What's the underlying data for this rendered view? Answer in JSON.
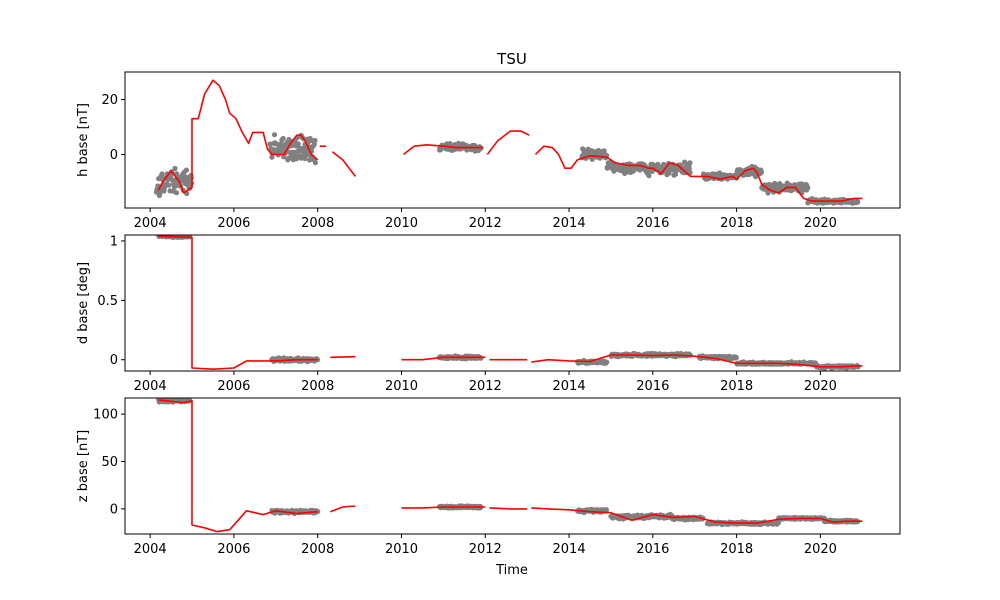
{
  "chart_data": {
    "type": "scatter",
    "title": "TSU",
    "xlabel": "Time",
    "xlim": [
      2003.4,
      2021.9
    ],
    "x_ticks": [
      2004,
      2006,
      2008,
      2010,
      2012,
      2014,
      2016,
      2018,
      2020
    ],
    "colors": {
      "observations": "#808080",
      "baseline": "#ff0000"
    },
    "grid": false,
    "panels": [
      {
        "id": "h",
        "ylabel": "h base [nT]",
        "ylim": [
          -19.5,
          30
        ],
        "y_ticks": [
          0,
          20
        ],
        "series": [
          {
            "kind": "points",
            "clusters": [
              [
                2004.15,
                2005.0,
                -10,
                4.0
              ],
              [
                2006.85,
                2007.95,
                2,
                4.5
              ],
              [
                2010.9,
                2011.9,
                2.5,
                1.2
              ],
              [
                2014.3,
                2014.9,
                0,
                2.0
              ],
              [
                2014.9,
                2016.9,
                -5,
                2.0
              ],
              [
                2017.2,
                2018.0,
                -8,
                1.0
              ],
              [
                2018.0,
                2018.6,
                -6,
                1.5
              ],
              [
                2018.6,
                2019.2,
                -12,
                1.5
              ],
              [
                2019.2,
                2019.7,
                -12,
                1.5
              ],
              [
                2019.7,
                2020.9,
                -17,
                0.8
              ]
            ]
          },
          {
            "kind": "line",
            "segments": [
              [
                [
                  2004.2,
                  -13
                ],
                [
                  2004.3,
                  -10
                ],
                [
                  2004.4,
                  -8
                ],
                [
                  2004.5,
                  -6
                ],
                [
                  2004.6,
                  -8
                ],
                [
                  2004.7,
                  -10
                ],
                [
                  2004.8,
                  -14
                ],
                [
                  2004.9,
                  -13
                ],
                [
                  2005.0,
                  -12
                ],
                [
                  2005.0,
                  13
                ],
                [
                  2005.15,
                  13
                ],
                [
                  2005.3,
                  22
                ],
                [
                  2005.5,
                  27
                ],
                [
                  2005.65,
                  25
                ],
                [
                  2005.8,
                  20
                ],
                [
                  2005.9,
                  15
                ],
                [
                  2006.05,
                  13
                ],
                [
                  2006.2,
                  8
                ],
                [
                  2006.35,
                  4
                ],
                [
                  2006.45,
                  8
                ],
                [
                  2006.7,
                  8
                ],
                [
                  2006.8,
                  2
                ],
                [
                  2006.9,
                  0
                ],
                [
                  2007.0,
                  0
                ],
                [
                  2007.2,
                  0
                ],
                [
                  2007.35,
                  4
                ],
                [
                  2007.5,
                  7
                ],
                [
                  2007.6,
                  7
                ],
                [
                  2007.7,
                  5
                ],
                [
                  2007.85,
                  0
                ],
                [
                  2008.0,
                  -2
                ]
              ],
              [
                [
                  2008.05,
                  3
                ],
                [
                  2008.2,
                  3
                ]
              ],
              [
                [
                  2008.35,
                  1
                ],
                [
                  2008.6,
                  -2
                ],
                [
                  2008.9,
                  -8
                ]
              ],
              [
                [
                  2010.05,
                  0
                ],
                [
                  2010.3,
                  3
                ],
                [
                  2010.6,
                  3.5
                ],
                [
                  2011.0,
                  3
                ],
                [
                  2011.3,
                  2.5
                ],
                [
                  2011.6,
                  2.5
                ],
                [
                  2011.95,
                  2.5
                ]
              ],
              [
                [
                  2012.05,
                  0
                ],
                [
                  2012.3,
                  5
                ],
                [
                  2012.6,
                  8.5
                ],
                [
                  2012.85,
                  8.5
                ],
                [
                  2013.05,
                  7
                ]
              ],
              [
                [
                  2013.2,
                  0
                ],
                [
                  2013.4,
                  3
                ],
                [
                  2013.6,
                  2.5
                ],
                [
                  2013.75,
                  0
                ],
                [
                  2013.9,
                  -5
                ],
                [
                  2014.05,
                  -5
                ],
                [
                  2014.2,
                  -2
                ],
                [
                  2014.5,
                  -0.5
                ],
                [
                  2014.9,
                  -1
                ],
                [
                  2015.1,
                  -3
                ],
                [
                  2015.4,
                  -4
                ],
                [
                  2015.7,
                  -4
                ],
                [
                  2015.9,
                  -5
                ],
                [
                  2016.0,
                  -5
                ],
                [
                  2016.2,
                  -7
                ],
                [
                  2016.4,
                  -3
                ],
                [
                  2016.6,
                  -4
                ],
                [
                  2016.9,
                  -8
                ],
                [
                  2017.3,
                  -8
                ],
                [
                  2017.6,
                  -9
                ],
                [
                  2017.9,
                  -8
                ],
                [
                  2018.0,
                  -9
                ],
                [
                  2018.2,
                  -6
                ],
                [
                  2018.4,
                  -5
                ],
                [
                  2018.5,
                  -7
                ],
                [
                  2018.6,
                  -11
                ],
                [
                  2018.8,
                  -13
                ],
                [
                  2019.0,
                  -14
                ],
                [
                  2019.2,
                  -12
                ],
                [
                  2019.4,
                  -12
                ],
                [
                  2019.6,
                  -16
                ],
                [
                  2019.8,
                  -17
                ],
                [
                  2020.2,
                  -17
                ],
                [
                  2020.5,
                  -17
                ],
                [
                  2020.8,
                  -16
                ],
                [
                  2021.0,
                  -16
                ]
              ]
            ]
          }
        ]
      },
      {
        "id": "d",
        "ylabel": "d base [deg]",
        "ylim": [
          -0.095,
          1.05
        ],
        "y_ticks": [
          0.0,
          0.5,
          1.0
        ],
        "series": [
          {
            "kind": "points",
            "clusters": [
              [
                2004.2,
                2004.95,
                1.04,
                0.01
              ],
              [
                2006.9,
                2008.0,
                0.0,
                0.015
              ],
              [
                2010.9,
                2011.9,
                0.02,
                0.01
              ],
              [
                2014.2,
                2014.9,
                -0.02,
                0.012
              ],
              [
                2015.0,
                2016.9,
                0.04,
                0.012
              ],
              [
                2017.1,
                2018.0,
                0.02,
                0.01
              ],
              [
                2018.0,
                2019.9,
                -0.03,
                0.01
              ],
              [
                2019.9,
                2020.9,
                -0.06,
                0.01
              ]
            ]
          },
          {
            "kind": "line",
            "segments": [
              [
                [
                  2004.2,
                  1.04
                ],
                [
                  2005.0,
                  1.03
                ],
                [
                  2005.0,
                  -0.07
                ],
                [
                  2005.5,
                  -0.08
                ],
                [
                  2006.0,
                  -0.07
                ],
                [
                  2006.3,
                  -0.01
                ],
                [
                  2007.0,
                  -0.01
                ],
                [
                  2007.5,
                  0.0
                ],
                [
                  2008.0,
                  0.0
                ]
              ],
              [
                [
                  2008.3,
                  0.02
                ],
                [
                  2008.9,
                  0.025
                ]
              ],
              [
                [
                  2010.0,
                  0.0
                ],
                [
                  2010.5,
                  0.0
                ],
                [
                  2011.0,
                  0.02
                ],
                [
                  2011.5,
                  0.02
                ],
                [
                  2012.0,
                  0.02
                ]
              ],
              [
                [
                  2012.1,
                  0.0
                ],
                [
                  2013.0,
                  0.0
                ]
              ],
              [
                [
                  2013.1,
                  -0.02
                ],
                [
                  2013.5,
                  0.0
                ],
                [
                  2014.0,
                  -0.01
                ],
                [
                  2014.5,
                  -0.015
                ],
                [
                  2015.0,
                  0.04
                ],
                [
                  2015.5,
                  0.04
                ],
                [
                  2016.0,
                  0.035
                ],
                [
                  2016.5,
                  0.04
                ],
                [
                  2017.0,
                  0.03
                ],
                [
                  2017.5,
                  0.01
                ],
                [
                  2018.0,
                  -0.03
                ],
                [
                  2018.5,
                  -0.03
                ],
                [
                  2019.0,
                  -0.03
                ],
                [
                  2019.5,
                  -0.04
                ],
                [
                  2020.0,
                  -0.06
                ],
                [
                  2020.5,
                  -0.06
                ],
                [
                  2021.0,
                  -0.05
                ]
              ]
            ]
          }
        ]
      },
      {
        "id": "z",
        "ylabel": "z base [nT]",
        "ylim": [
          -26.5,
          117
        ],
        "y_ticks": [
          0,
          50,
          100
        ],
        "series": [
          {
            "kind": "points",
            "clusters": [
              [
                2004.2,
                2004.95,
                114,
                1.5
              ],
              [
                2006.9,
                2008.0,
                -3,
                1.5
              ],
              [
                2010.9,
                2011.9,
                2,
                1.0
              ],
              [
                2014.2,
                2014.9,
                -2,
                1.5
              ],
              [
                2015.0,
                2016.5,
                -8,
                2.0
              ],
              [
                2016.5,
                2017.2,
                -10,
                1.5
              ],
              [
                2017.3,
                2019.0,
                -15,
                1.2
              ],
              [
                2019.0,
                2020.1,
                -10,
                1.0
              ],
              [
                2020.1,
                2020.9,
                -13,
                1.0
              ]
            ]
          },
          {
            "kind": "line",
            "segments": [
              [
                [
                  2004.2,
                  115
                ],
                [
                  2004.8,
                  112
                ],
                [
                  2005.0,
                  114
                ],
                [
                  2005.0,
                  -17
                ],
                [
                  2005.3,
                  -20
                ],
                [
                  2005.6,
                  -24
                ],
                [
                  2005.9,
                  -22
                ],
                [
                  2006.1,
                  -12
                ],
                [
                  2006.3,
                  -2
                ],
                [
                  2006.7,
                  -6
                ],
                [
                  2007.0,
                  -2
                ],
                [
                  2007.5,
                  -5
                ],
                [
                  2008.0,
                  -3
                ]
              ],
              [
                [
                  2008.3,
                  -3
                ],
                [
                  2008.6,
                  2
                ],
                [
                  2008.9,
                  3
                ]
              ],
              [
                [
                  2010.0,
                  1
                ],
                [
                  2010.5,
                  1
                ],
                [
                  2011.0,
                  2
                ],
                [
                  2011.5,
                  2
                ],
                [
                  2012.0,
                  2
                ]
              ],
              [
                [
                  2012.1,
                  1
                ],
                [
                  2012.6,
                  0
                ],
                [
                  2013.0,
                  0
                ]
              ],
              [
                [
                  2013.1,
                  1
                ],
                [
                  2013.5,
                  0
                ],
                [
                  2014.0,
                  -1
                ],
                [
                  2014.5,
                  -3
                ],
                [
                  2015.0,
                  -4
                ],
                [
                  2015.5,
                  -12
                ],
                [
                  2016.0,
                  -6
                ],
                [
                  2016.5,
                  -9
                ],
                [
                  2017.0,
                  -8
                ],
                [
                  2017.5,
                  -14
                ],
                [
                  2018.0,
                  -15
                ],
                [
                  2018.5,
                  -15
                ],
                [
                  2019.0,
                  -11
                ],
                [
                  2019.5,
                  -10
                ],
                [
                  2020.0,
                  -10
                ],
                [
                  2020.3,
                  -14
                ],
                [
                  2020.6,
                  -13
                ],
                [
                  2021.0,
                  -13
                ]
              ]
            ]
          }
        ]
      }
    ]
  }
}
